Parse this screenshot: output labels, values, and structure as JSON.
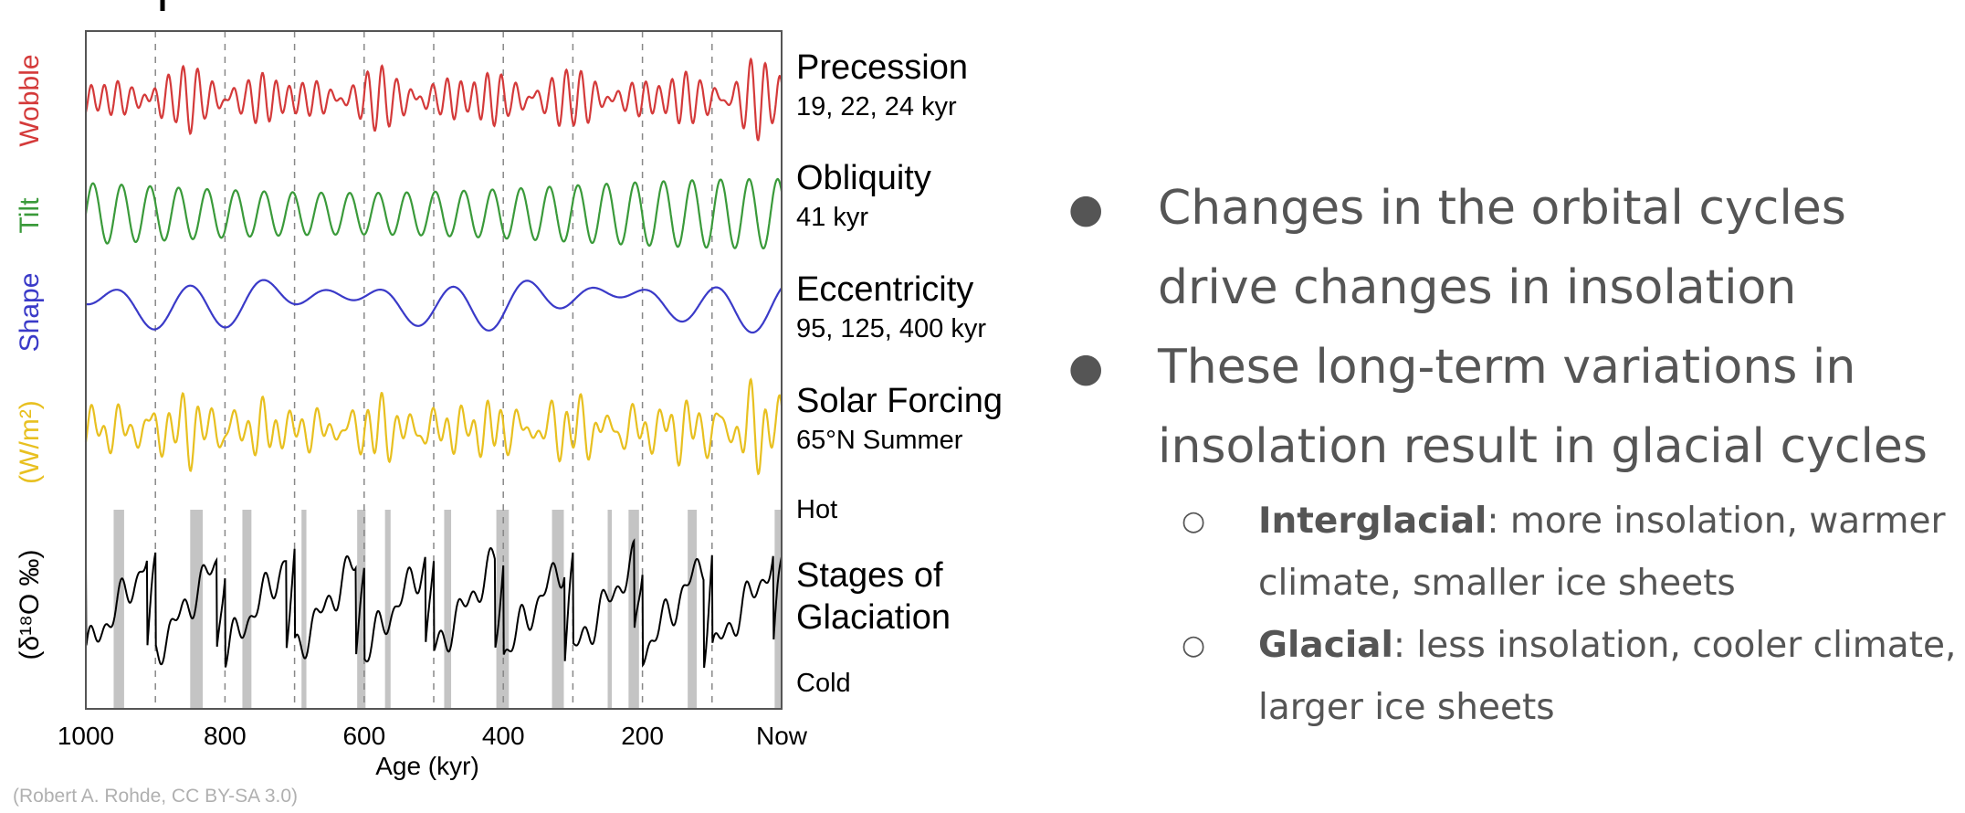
{
  "chart_data": {
    "type": "line",
    "xlabel": "Age (kyr)",
    "x_ticks": [
      "1000",
      "800",
      "600",
      "400",
      "200",
      "Now"
    ],
    "xlim": [
      1000,
      0
    ],
    "panels": [
      {
        "title": "Precession",
        "subtitle": "19, 22, 24 kyr",
        "side_label": "Wobble",
        "color": "#d43a3a",
        "periods_kyr": [
          19,
          22,
          24
        ]
      },
      {
        "title": "Obliquity",
        "subtitle": "41 kyr",
        "side_label": "Tilt",
        "color": "#3a9a3a",
        "periods_kyr": [
          41
        ]
      },
      {
        "title": "Eccentricity",
        "subtitle": "95, 125, 400 kyr",
        "side_label": "Shape",
        "color": "#3a3ac8",
        "periods_kyr": [
          95,
          125,
          400
        ]
      },
      {
        "title": "Solar Forcing",
        "subtitle": "65°N Summer",
        "side_label": "(W/m²)",
        "color": "#e8c020"
      },
      {
        "title": "Stages of Glaciation",
        "subtitle": "",
        "side_label": "(δ¹⁸O ‰)",
        "color": "#000000",
        "top_label": "Hot",
        "bottom_label": "Cold"
      }
    ],
    "interglacial_bands_kyr": [
      [
        960,
        945
      ],
      [
        850,
        832
      ],
      [
        775,
        762
      ],
      [
        690,
        683
      ],
      [
        610,
        598
      ],
      [
        570,
        562
      ],
      [
        485,
        475
      ],
      [
        410,
        392
      ],
      [
        330,
        313
      ],
      [
        250,
        244
      ],
      [
        220,
        205
      ],
      [
        135,
        122
      ],
      [
        10,
        0
      ]
    ],
    "credit": "(Robert A. Rohde, CC BY-SA 3.0)"
  },
  "bullets": [
    {
      "text": "Changes in the orbital cycles drive changes in insolation"
    },
    {
      "text": "These long-term variations in insolation result in glacial cycles",
      "children": [
        {
          "bold": "Interglacial",
          "rest": ": more insolation, warmer climate, smaller ice sheets"
        },
        {
          "bold": "Glacial",
          "rest": ": less insolation, cooler climate, larger ice sheets"
        }
      ]
    }
  ]
}
